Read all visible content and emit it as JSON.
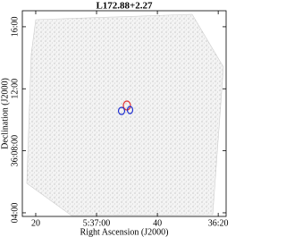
{
  "chart_data": {
    "type": "image",
    "title": "L172.88+2.27",
    "x_label": "Right Ascension (J2000)",
    "y_label": "Declination (J2000)",
    "xlim": [
      20244.4,
      20177.4
    ],
    "xticks": [
      {
        "value": 20240,
        "label": "20"
      },
      {
        "value": 20220,
        "label": "5:37:00"
      },
      {
        "value": 20200,
        "label": "40"
      },
      {
        "value": 20180,
        "label": "36:20"
      }
    ],
    "ylim": [
      226,
      1022
    ],
    "yticks": [
      {
        "value": 240,
        "label": "04:00"
      },
      {
        "value": 480,
        "label": "36:08:00"
      },
      {
        "value": 720,
        "label": "12:00"
      },
      {
        "value": 960,
        "label": "16:00"
      }
    ]
  }
}
